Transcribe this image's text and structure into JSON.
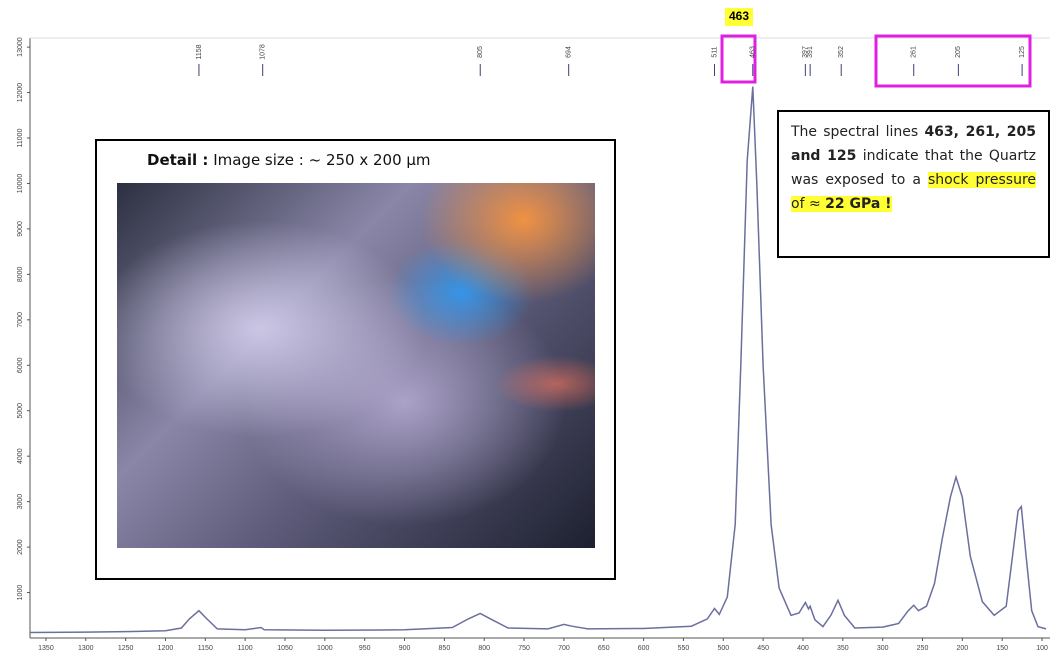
{
  "chart_data": {
    "type": "line",
    "color": "#6b6f9e",
    "xlim": [
      1370,
      90
    ],
    "ylim": [
      0,
      13200
    ],
    "xticks": [
      1350,
      1300,
      1250,
      1200,
      1150,
      1100,
      1050,
      1000,
      950,
      900,
      850,
      800,
      750,
      700,
      650,
      600,
      550,
      500,
      450,
      400,
      350,
      300,
      250,
      200,
      150,
      100
    ],
    "yticks": [
      1000,
      2000,
      3000,
      4000,
      5000,
      6000,
      7000,
      8000,
      9000,
      10000,
      11000,
      12000,
      13000
    ],
    "x": [
      1370,
      1300,
      1250,
      1200,
      1180,
      1170,
      1158,
      1148,
      1135,
      1100,
      1080,
      1076,
      1000,
      900,
      840,
      820,
      805,
      790,
      770,
      720,
      700,
      690,
      670,
      600,
      540,
      520,
      511,
      505,
      495,
      485,
      478,
      470,
      463,
      458,
      450,
      440,
      430,
      415,
      405,
      397,
      393,
      391,
      385,
      375,
      365,
      356,
      348,
      335,
      300,
      280,
      268,
      261,
      255,
      245,
      235,
      225,
      215,
      208,
      200,
      190,
      175,
      160,
      145,
      137,
      130,
      126,
      120,
      113,
      105,
      95
    ],
    "values": [
      120,
      130,
      140,
      160,
      220,
      420,
      600,
      420,
      200,
      180,
      230,
      180,
      170,
      180,
      230,
      420,
      540,
      400,
      220,
      200,
      300,
      260,
      200,
      210,
      260,
      420,
      650,
      520,
      900,
      2500,
      6000,
      10500,
      12130,
      10000,
      6000,
      2500,
      1100,
      500,
      550,
      780,
      640,
      700,
      400,
      250,
      500,
      830,
      500,
      220,
      240,
      320,
      600,
      720,
      600,
      700,
      1200,
      2200,
      3100,
      3540,
      3100,
      1800,
      800,
      500,
      700,
      1800,
      2800,
      2890,
      1800,
      600,
      250,
      200
    ],
    "peak_markers": [
      1158,
      1078,
      805,
      694,
      511,
      463,
      397,
      391,
      352,
      261,
      205,
      125
    ],
    "highlight_label": "463",
    "annotation": [
      "The spectral lines ",
      "463, 261, 205 and 125",
      " indicate that the Quartz was exposed to a ",
      "shock pressure of ≈ ",
      "22 GPa !"
    ],
    "inset": {
      "label": "Detail :",
      "text": " Image size :  ~ 250 x 200 µm"
    }
  }
}
